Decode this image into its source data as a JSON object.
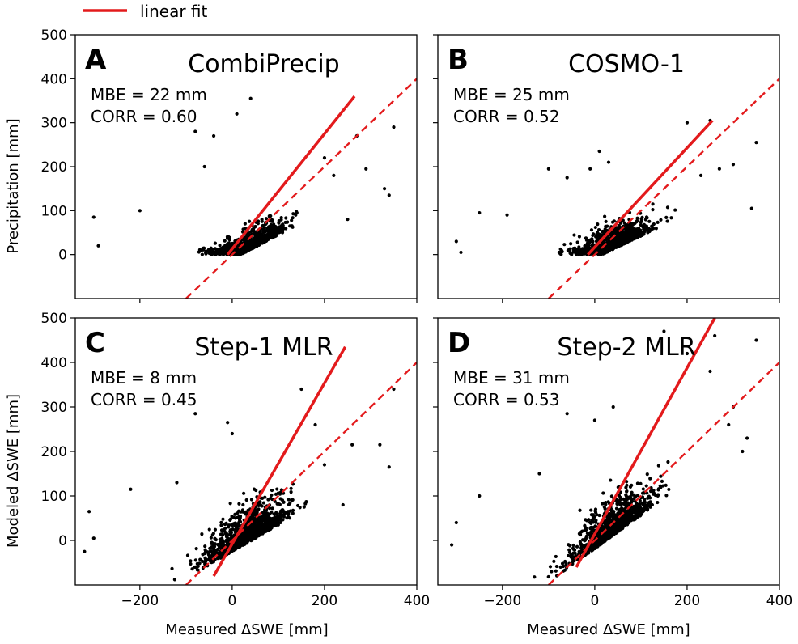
{
  "legend": {
    "label": "linear fit",
    "color": "#e31a1c"
  },
  "axes": {
    "xlabel": "Measured ΔSWE [mm]",
    "ylabel_top": "Precipitation [mm]",
    "ylabel_bottom": "Modeled ΔSWE [mm]"
  },
  "chart_data": [
    {
      "type": "scatter",
      "letter": "A",
      "title": "CombiPrecip",
      "mbe": "MBE = 22 mm",
      "corr": "CORR = 0.60",
      "xlim": [
        -340,
        400
      ],
      "ylim": [
        -100,
        500
      ],
      "xticks": [
        -200,
        0,
        200,
        400
      ],
      "yticks": [
        0,
        100,
        200,
        300,
        400,
        500
      ],
      "fit": {
        "x": [
          -10,
          265
        ],
        "y": [
          0,
          360
        ]
      },
      "one_to_one": {
        "x": [
          -100,
          400
        ],
        "y": [
          -100,
          400
        ]
      },
      "cloud": {
        "n": 850,
        "seed": 11,
        "cx": 30,
        "sx": 55,
        "slope": 0.55,
        "cy": 20,
        "sy": 35,
        "floor": 0
      },
      "outliers": [
        [
          -300,
          85
        ],
        [
          -290,
          20
        ],
        [
          -200,
          100
        ],
        [
          -80,
          280
        ],
        [
          -60,
          200
        ],
        [
          10,
          320
        ],
        [
          40,
          355
        ],
        [
          -40,
          270
        ],
        [
          200,
          220
        ],
        [
          270,
          270
        ],
        [
          290,
          195
        ],
        [
          350,
          290
        ],
        [
          340,
          135
        ],
        [
          330,
          150
        ],
        [
          250,
          80
        ],
        [
          220,
          180
        ]
      ]
    },
    {
      "type": "scatter",
      "letter": "B",
      "title": "COSMO-1",
      "mbe": "MBE = 25 mm",
      "corr": "CORR = 0.52",
      "xlim": [
        -340,
        400
      ],
      "ylim": [
        -100,
        500
      ],
      "xticks": [
        -200,
        0,
        200,
        400
      ],
      "yticks": [
        0,
        100,
        200,
        300,
        400,
        500
      ],
      "fit": {
        "x": [
          -15,
          255
        ],
        "y": [
          0,
          305
        ]
      },
      "one_to_one": {
        "x": [
          -100,
          400
        ],
        "y": [
          -100,
          400
        ]
      },
      "cloud": {
        "n": 850,
        "seed": 23,
        "cx": 35,
        "sx": 55,
        "slope": 0.5,
        "cy": 25,
        "sy": 38,
        "floor": 0
      },
      "outliers": [
        [
          -300,
          30
        ],
        [
          -290,
          5
        ],
        [
          -250,
          95
        ],
        [
          -190,
          90
        ],
        [
          -100,
          195
        ],
        [
          -60,
          175
        ],
        [
          -10,
          195
        ],
        [
          10,
          235
        ],
        [
          30,
          210
        ],
        [
          200,
          300
        ],
        [
          250,
          305
        ],
        [
          300,
          205
        ],
        [
          340,
          105
        ],
        [
          350,
          255
        ],
        [
          270,
          195
        ],
        [
          230,
          180
        ]
      ]
    },
    {
      "type": "scatter",
      "letter": "C",
      "title": "Step-1 MLR",
      "mbe": "MBE = 8 mm",
      "corr": "CORR = 0.45",
      "xlim": [
        -340,
        400
      ],
      "ylim": [
        -100,
        500
      ],
      "xticks": [
        -200,
        0,
        200,
        400
      ],
      "yticks": [
        0,
        100,
        200,
        300,
        400,
        500
      ],
      "fit": {
        "x": [
          -40,
          245
        ],
        "y": [
          -80,
          435
        ]
      },
      "one_to_one": {
        "x": [
          -100,
          400
        ],
        "y": [
          -100,
          400
        ]
      },
      "cloud": {
        "n": 1000,
        "seed": 37,
        "cx": 30,
        "sx": 60,
        "slope": 0.6,
        "cy": 15,
        "sy": 55,
        "floor": -90
      },
      "outliers": [
        [
          -310,
          65
        ],
        [
          -300,
          5
        ],
        [
          -320,
          -25
        ],
        [
          -220,
          115
        ],
        [
          -120,
          130
        ],
        [
          -80,
          285
        ],
        [
          -10,
          265
        ],
        [
          0,
          240
        ],
        [
          150,
          340
        ],
        [
          180,
          260
        ],
        [
          260,
          215
        ],
        [
          320,
          215
        ],
        [
          340,
          165
        ],
        [
          350,
          340
        ],
        [
          240,
          80
        ],
        [
          200,
          170
        ]
      ]
    },
    {
      "type": "scatter",
      "letter": "D",
      "title": "Step-2 MLR",
      "mbe": "MBE = 31 mm",
      "corr": "CORR = 0.53",
      "xlim": [
        -340,
        400
      ],
      "ylim": [
        -100,
        500
      ],
      "xticks": [
        -200,
        0,
        200,
        400
      ],
      "yticks": [
        0,
        100,
        200,
        300,
        400,
        500
      ],
      "fit": {
        "x": [
          -40,
          260
        ],
        "y": [
          -60,
          500
        ]
      },
      "one_to_one": {
        "x": [
          -100,
          400
        ],
        "y": [
          -100,
          400
        ]
      },
      "cloud": {
        "n": 1000,
        "seed": 53,
        "cx": 35,
        "sx": 60,
        "slope": 0.75,
        "cy": 30,
        "sy": 55,
        "floor": -85
      },
      "outliers": [
        [
          -300,
          40
        ],
        [
          -310,
          -10
        ],
        [
          -250,
          100
        ],
        [
          -120,
          150
        ],
        [
          -60,
          285
        ],
        [
          0,
          270
        ],
        [
          40,
          300
        ],
        [
          150,
          470
        ],
        [
          200,
          420
        ],
        [
          250,
          380
        ],
        [
          260,
          460
        ],
        [
          300,
          300
        ],
        [
          320,
          200
        ],
        [
          350,
          450
        ],
        [
          330,
          230
        ],
        [
          290,
          260
        ]
      ]
    }
  ]
}
